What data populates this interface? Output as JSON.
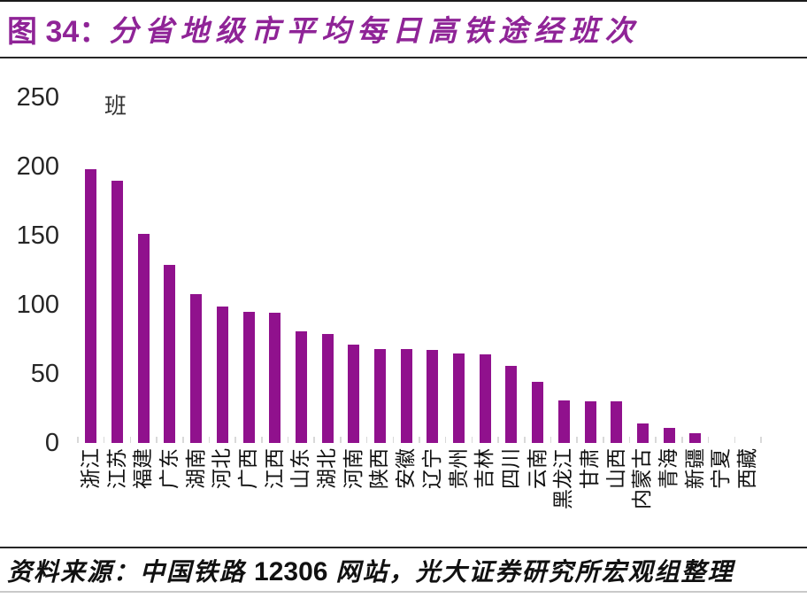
{
  "title": {
    "prefix": "图 34：",
    "text": "分省地级市平均每日高铁途经班次"
  },
  "footer": {
    "source_prefix": "资料来源：中国铁路 ",
    "source_number": "12306",
    "source_suffix": " 网站，光大证券研究所宏观组整理"
  },
  "colors": {
    "bar": "#90118d",
    "title": "#8f2497",
    "axis": "#d9d9d9",
    "text": "#262626",
    "divider": "#262626",
    "bottom_line": "#c9c9c9"
  },
  "chart_data": {
    "type": "bar",
    "title": "分省地级市平均每日高铁途经班次",
    "unit_label": "班",
    "xlabel": "",
    "ylabel": "班",
    "categories": [
      "浙江",
      "江苏",
      "福建",
      "广东",
      "湖南",
      "河北",
      "广西",
      "江西",
      "山东",
      "湖北",
      "河南",
      "陕西",
      "安徽",
      "辽宁",
      "贵州",
      "吉林",
      "四川",
      "云南",
      "黑龙江",
      "甘肃",
      "山西",
      "内蒙古",
      "青海",
      "新疆",
      "宁夏",
      "西藏"
    ],
    "values": [
      198,
      190,
      151,
      129,
      108,
      99,
      95,
      94,
      81,
      79,
      71,
      68,
      68,
      67,
      65,
      64,
      56,
      44,
      31,
      30,
      30,
      14,
      11,
      7,
      0,
      0
    ],
    "ylim": [
      0,
      250
    ],
    "yticks": [
      0,
      50,
      100,
      150,
      200,
      250
    ],
    "grid": false,
    "legend": false,
    "bar_color": "#90118d"
  }
}
